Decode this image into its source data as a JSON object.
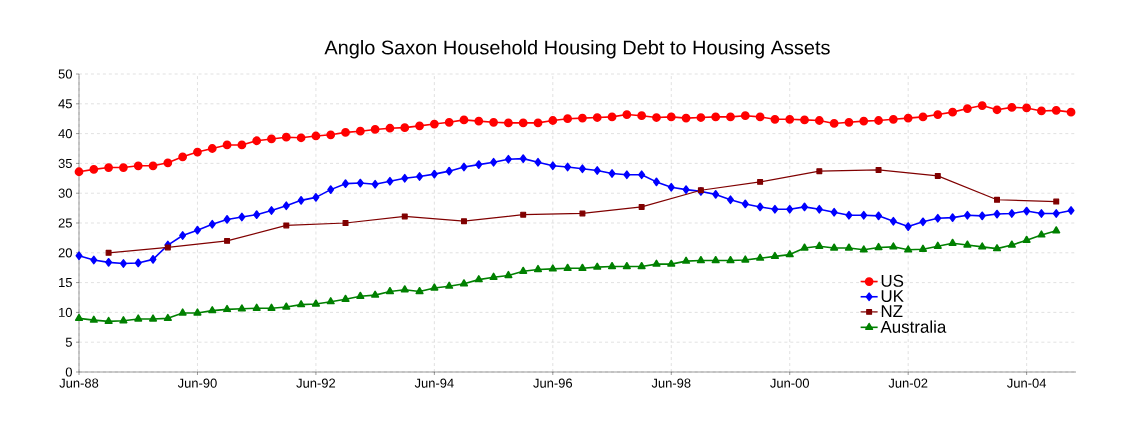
{
  "chart_data": {
    "type": "line",
    "title": "Anglo Saxon Household Housing Debt to Housing Assets",
    "x": [
      "1988-06",
      "1988-09",
      "1988-12",
      "1989-03",
      "1989-06",
      "1989-09",
      "1989-12",
      "1990-03",
      "1990-06",
      "1990-09",
      "1990-12",
      "1991-03",
      "1991-06",
      "1991-09",
      "1991-12",
      "1992-03",
      "1992-06",
      "1992-09",
      "1992-12",
      "1993-03",
      "1993-06",
      "1993-09",
      "1993-12",
      "1994-03",
      "1994-06",
      "1994-09",
      "1994-12",
      "1995-03",
      "1995-06",
      "1995-09",
      "1995-12",
      "1996-03",
      "1996-06",
      "1996-09",
      "1996-12",
      "1997-03",
      "1997-06",
      "1997-09",
      "1997-12",
      "1998-03",
      "1998-06",
      "1998-09",
      "1998-12",
      "1999-03",
      "1999-06",
      "1999-09",
      "1999-12",
      "2000-03",
      "2000-06",
      "2000-09",
      "2000-12",
      "2001-03",
      "2001-06",
      "2001-09",
      "2001-12",
      "2002-03",
      "2002-06",
      "2002-09",
      "2002-12",
      "2003-03",
      "2003-06",
      "2003-09",
      "2003-12",
      "2004-03",
      "2004-06",
      "2004-09",
      "2004-12",
      "2005-03"
    ],
    "series": [
      {
        "name": "US",
        "color": "#ff0000",
        "marker": "circle",
        "values": [
          33.6,
          34.0,
          34.3,
          34.3,
          34.6,
          34.6,
          35.1,
          36.1,
          36.9,
          37.5,
          38.1,
          38.1,
          38.8,
          39.1,
          39.4,
          39.3,
          39.6,
          39.8,
          40.2,
          40.4,
          40.7,
          40.9,
          41.0,
          41.3,
          41.6,
          41.9,
          42.3,
          42.1,
          41.9,
          41.8,
          41.8,
          41.8,
          42.2,
          42.5,
          42.6,
          42.7,
          42.8,
          43.2,
          43.0,
          42.7,
          42.8,
          42.6,
          42.7,
          42.8,
          42.8,
          43.0,
          42.8,
          42.4,
          42.4,
          42.3,
          42.2,
          41.7,
          41.9,
          42.1,
          42.2,
          42.4,
          42.6,
          42.8,
          43.2,
          43.6,
          44.2,
          44.7,
          44.0,
          44.4,
          44.3,
          43.8,
          43.9,
          43.6
        ]
      },
      {
        "name": "UK",
        "color": "#0000ff",
        "marker": "diamond",
        "values": [
          19.5,
          18.8,
          18.4,
          18.2,
          18.3,
          18.9,
          21.3,
          22.9,
          23.8,
          24.8,
          25.6,
          26.0,
          26.4,
          27.1,
          27.9,
          28.8,
          29.3,
          30.6,
          31.6,
          31.7,
          31.5,
          32.0,
          32.5,
          32.8,
          33.2,
          33.7,
          34.4,
          34.8,
          35.2,
          35.7,
          35.8,
          35.2,
          34.6,
          34.4,
          34.1,
          33.8,
          33.3,
          33.1,
          33.1,
          31.9,
          31.0,
          30.6,
          30.3,
          29.8,
          28.9,
          28.2,
          27.7,
          27.3,
          27.3,
          27.7,
          27.3,
          26.8,
          26.3,
          26.3,
          26.2,
          25.3,
          24.4,
          25.2,
          25.8,
          25.9,
          26.3,
          26.2,
          26.5,
          26.6,
          27.0,
          26.6,
          26.6,
          27.1
        ]
      },
      {
        "name": "NZ",
        "color": "#800000",
        "marker": "square",
        "x": [
          "1988-12",
          "1989-12",
          "1990-12",
          "1991-12",
          "1992-12",
          "1993-12",
          "1994-12",
          "1995-12",
          "1996-12",
          "1997-12",
          "1998-12",
          "1999-12",
          "2000-12",
          "2001-12",
          "2002-12",
          "2003-12",
          "2004-12"
        ],
        "values": [
          20.0,
          20.9,
          22.0,
          24.6,
          25.0,
          26.1,
          25.3,
          26.4,
          26.6,
          27.7,
          30.5,
          31.9,
          33.7,
          33.9,
          32.9,
          28.9,
          28.6
        ]
      },
      {
        "name": "Australia",
        "color": "#008000",
        "marker": "triangle",
        "values": [
          9.0,
          8.7,
          8.5,
          8.6,
          8.9,
          8.9,
          9.0,
          9.9,
          9.9,
          10.3,
          10.5,
          10.6,
          10.7,
          10.7,
          10.9,
          11.3,
          11.4,
          11.8,
          12.2,
          12.7,
          12.9,
          13.5,
          13.8,
          13.5,
          14.1,
          14.4,
          14.8,
          15.5,
          15.9,
          16.2,
          16.9,
          17.2,
          17.3,
          17.4,
          17.4,
          17.6,
          17.7,
          17.7,
          17.7,
          18.1,
          18.1,
          18.6,
          18.7,
          18.7,
          18.7,
          18.8,
          19.1,
          19.4,
          19.7,
          20.8,
          21.1,
          20.8,
          20.8,
          20.5,
          20.9,
          21.0,
          20.5,
          20.6,
          21.1,
          21.6,
          21.3,
          21.0,
          20.7,
          21.3,
          22.1,
          23.0,
          23.7,
          null
        ]
      }
    ],
    "xlim": [
      "1988-06",
      "2005-04"
    ],
    "xticks": [
      {
        "value": "1988-06",
        "label": "Jun-88"
      },
      {
        "value": "1990-06",
        "label": "Jun-90"
      },
      {
        "value": "1992-06",
        "label": "Jun-92"
      },
      {
        "value": "1994-06",
        "label": "Jun-94"
      },
      {
        "value": "1996-06",
        "label": "Jun-96"
      },
      {
        "value": "1998-06",
        "label": "Jun-98"
      },
      {
        "value": "2000-06",
        "label": "Jun-00"
      },
      {
        "value": "2002-06",
        "label": "Jun-02"
      },
      {
        "value": "2004-06",
        "label": "Jun-04"
      }
    ],
    "ylim": [
      0,
      50
    ],
    "yticks": [
      0,
      5,
      10,
      15,
      20,
      25,
      30,
      35,
      40,
      45,
      50
    ],
    "grid": true,
    "legend": "bottom right"
  }
}
